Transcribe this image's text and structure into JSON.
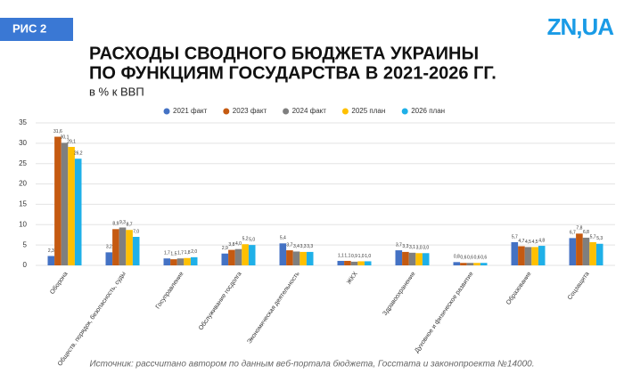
{
  "badge": "РИС 2",
  "logo": "ZN,UA",
  "chart_data": {
    "type": "bar",
    "title_lines": [
      "РАСХОДЫ СВОДНОГО БЮДЖЕТА УКРАИНЫ",
      "ПО ФУНКЦИЯМ ГОСУДАРСТВА В 2021-2026 ГГ."
    ],
    "subtitle": "в % к ВВП",
    "source": "Источник: рассчитано автором по данным веб-портала бюджета, Госстата и законопроекта №14000.",
    "categories": [
      "Оборона",
      "Обществ. порядок, безопасность, суды",
      "Госуправление",
      "Обслуживание госдолга",
      "Экономическая деятельность",
      "ЖКХ",
      "Здравоохранение",
      "Духовное и физическое развитие",
      "Образование",
      "Соцзащита"
    ],
    "series": [
      {
        "name": "2021 факт",
        "color": "#4472c4",
        "values": [
          2.3,
          3.2,
          1.7,
          2.9,
          5.4,
          1.1,
          3.7,
          0.8,
          5.7,
          6.7
        ],
        "value_labels": [
          "2,3",
          "3,2",
          "1,7",
          "2,9",
          "5,4",
          "1,1",
          "3,7",
          "0,8",
          "5,7",
          "6,7"
        ]
      },
      {
        "name": "2023 факт",
        "color": "#c55a11",
        "values": [
          31.6,
          8.9,
          1.5,
          3.8,
          3.7,
          1.1,
          3.3,
          0.6,
          4.7,
          7.8
        ],
        "value_labels": [
          "31,6",
          "8,9",
          "1,5",
          "3,8",
          "3,7",
          "1,1",
          "3,3",
          "0,6",
          "4,7",
          "7,8"
        ]
      },
      {
        "name": "2024 факт",
        "color": "#7f7f7f",
        "values": [
          30.1,
          9.3,
          1.7,
          4.0,
          3.4,
          0.9,
          3.1,
          0.6,
          4.5,
          6.8
        ],
        "value_labels": [
          "30,1",
          "9,3",
          "1,7",
          "4,0",
          "3,4",
          "0,9",
          "3,1",
          "0,6",
          "4,5",
          "6,8"
        ]
      },
      {
        "name": "2025 план",
        "color": "#ffc000",
        "values": [
          29.1,
          8.7,
          1.8,
          5.2,
          3.3,
          1.0,
          3.0,
          0.6,
          4.5,
          5.7
        ],
        "value_labels": [
          "29,1",
          "8,7",
          "1,8",
          "5,2",
          "3,3",
          "1,0",
          "3,0",
          "0,6",
          "4,5",
          "5,7"
        ]
      },
      {
        "name": "2026 план",
        "color": "#1fb0e8",
        "values": [
          26.2,
          7.0,
          2.0,
          5.0,
          3.3,
          1.0,
          3.0,
          0.6,
          4.8,
          5.3
        ],
        "value_labels": [
          "26,2",
          "7,0",
          "2,0",
          "5,0",
          "3,3",
          "1,0",
          "3,0",
          "0,6",
          "4,8",
          "5,3"
        ]
      }
    ],
    "ylim": [
      0,
      35
    ],
    "yticks": [
      0,
      5,
      10,
      15,
      20,
      25,
      30,
      35
    ],
    "grid": true,
    "legend": "top"
  }
}
